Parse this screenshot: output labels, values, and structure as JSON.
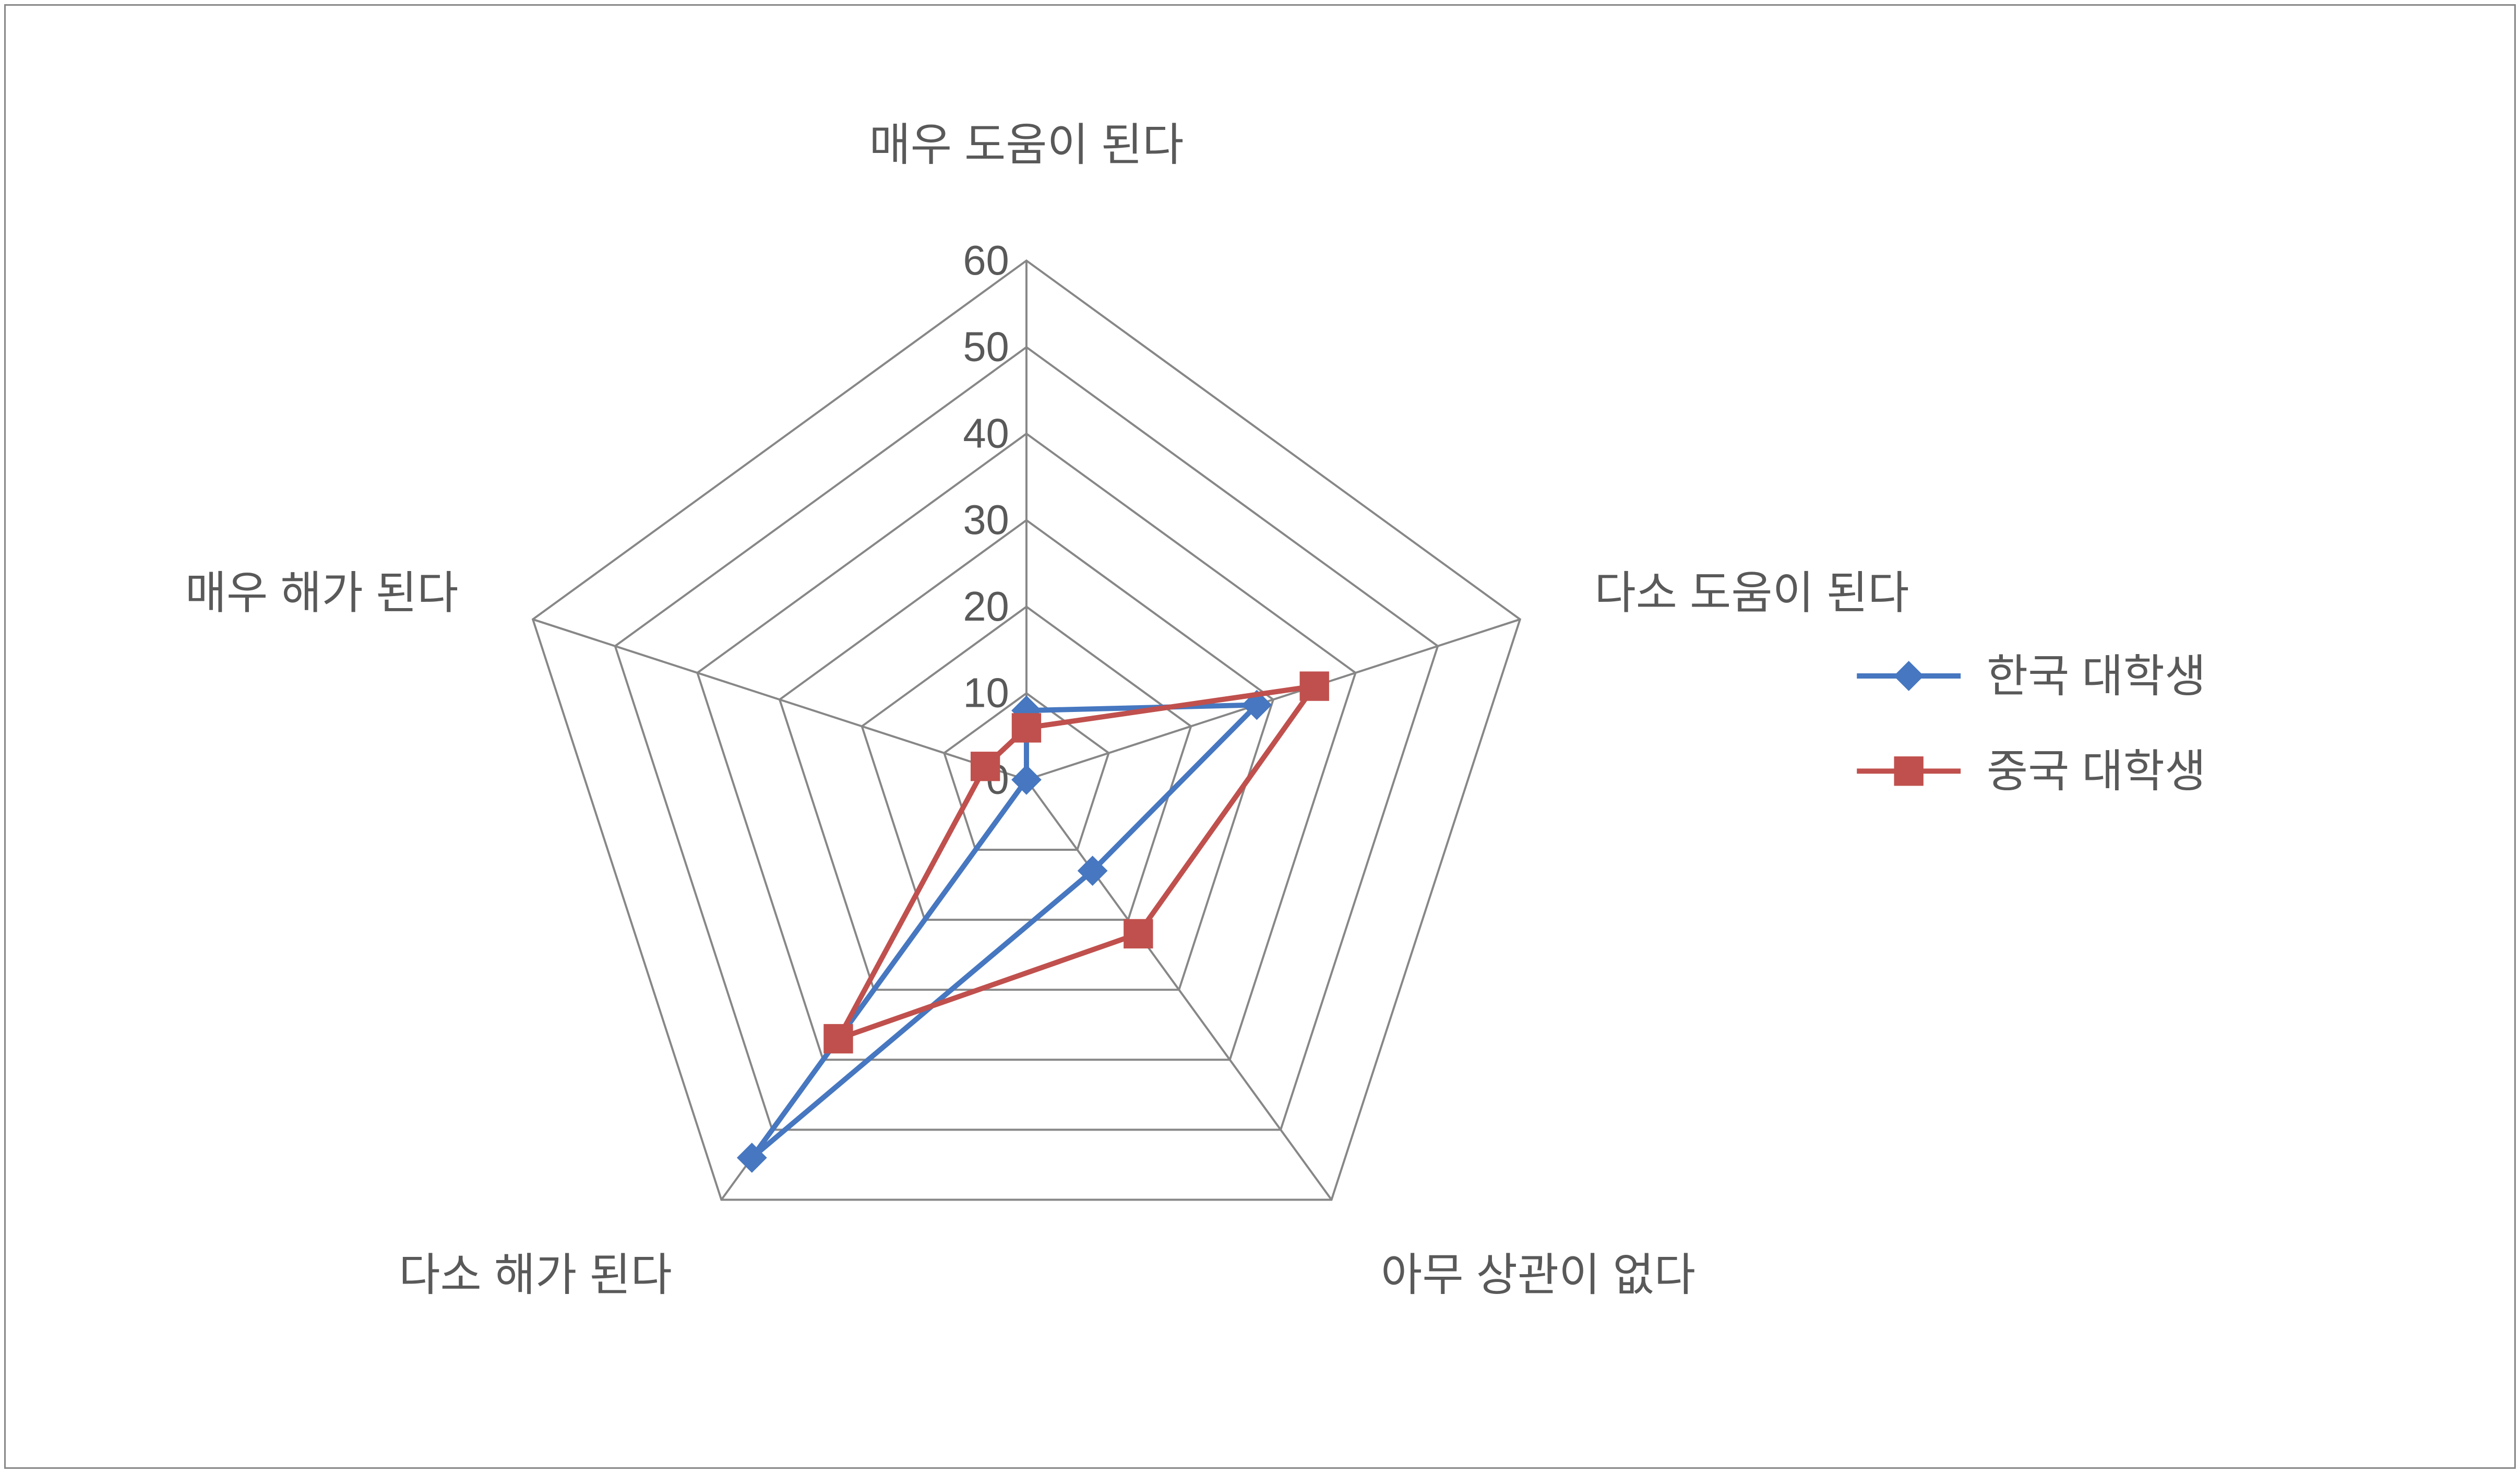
{
  "chart": {
    "type": "radar",
    "axes": [
      "매우 도움이 된다",
      "다소 도움이 된다",
      "아무 상관이 없다",
      "다소 해가 된다",
      "매우 해가 된다"
    ],
    "scale": {
      "min": 0,
      "max": 60,
      "step": 10
    },
    "tick_labels": [
      "0",
      "10",
      "20",
      "30",
      "40",
      "50",
      "60"
    ],
    "series": [
      {
        "name": "한국 대학생",
        "values": [
          8,
          28,
          13,
          54,
          0
        ],
        "color": "#4677c0",
        "marker": "diamond",
        "line_width": 3,
        "marker_size": 8
      },
      {
        "name": "중국 대학생",
        "values": [
          6,
          35,
          22,
          37,
          5
        ],
        "color": "#c0504d",
        "marker": "square",
        "line_width": 3,
        "marker_size": 8
      }
    ],
    "grid_color": "#878787",
    "grid_width": 1.2,
    "axis_label_fontsize": 26,
    "tick_label_fontsize": 24,
    "tick_label_color": "#595959",
    "legend_fontsize": 26,
    "background_color": "#ffffff"
  },
  "legend": {
    "items": [
      "한국 대학생",
      "중국 대학생"
    ]
  }
}
